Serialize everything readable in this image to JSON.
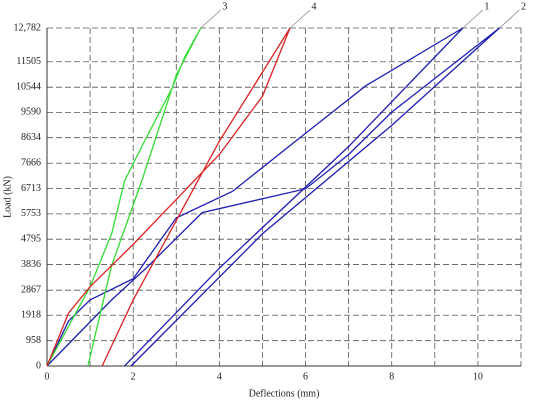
{
  "chart_data": {
    "type": "line",
    "xlabel": "Deflections (mm)",
    "ylabel": "Load (kN)",
    "xlim": [
      0,
      11
    ],
    "xticks": [
      0,
      2,
      4,
      6,
      8,
      10
    ],
    "ylim": [
      0,
      12782
    ],
    "yticks": [
      0,
      958,
      1918,
      2867,
      3836,
      4795,
      5753,
      6713,
      7666,
      8634,
      9590,
      10544,
      11505,
      {
        "value": 12782,
        "label": "12,782"
      }
    ],
    "grid": true,
    "series": [
      {
        "name": "1",
        "color": "#1f1fb4",
        "x": [
          0,
          0.5,
          1,
          2,
          3,
          4.3,
          6,
          7.4,
          9.65,
          7,
          4,
          1.8
        ],
        "values": [
          0,
          1700,
          2500,
          3300,
          5600,
          6600,
          8800,
          10600,
          12782,
          8300,
          3700,
          0
        ]
      },
      {
        "name": "2",
        "color": "#1f1fb4",
        "x": [
          0,
          1.5,
          2.3,
          3.6,
          6,
          7,
          8,
          10.5,
          8,
          5,
          1.95
        ],
        "values": [
          0,
          2500,
          3700,
          5800,
          6700,
          8000,
          9600,
          12782,
          9100,
          5000,
          0
        ]
      },
      {
        "name": "3",
        "color": "#33dd33",
        "x": [
          0,
          0.5,
          1,
          1.5,
          1.8,
          2.2,
          2.9,
          3.2,
          3.57,
          3,
          2.2,
          1.5,
          0.95
        ],
        "values": [
          0,
          1500,
          3000,
          5000,
          7000,
          8300,
          10500,
          11700,
          12782,
          11000,
          7000,
          3800,
          0
        ]
      },
      {
        "name": "4",
        "color": "#dd2222",
        "x": [
          0,
          0.5,
          1,
          2,
          3,
          4,
          5,
          5.64,
          4,
          3,
          2,
          1.28
        ],
        "values": [
          0,
          2000,
          3000,
          4600,
          6300,
          8000,
          10200,
          12782,
          8500,
          5500,
          2500,
          0
        ]
      }
    ]
  }
}
